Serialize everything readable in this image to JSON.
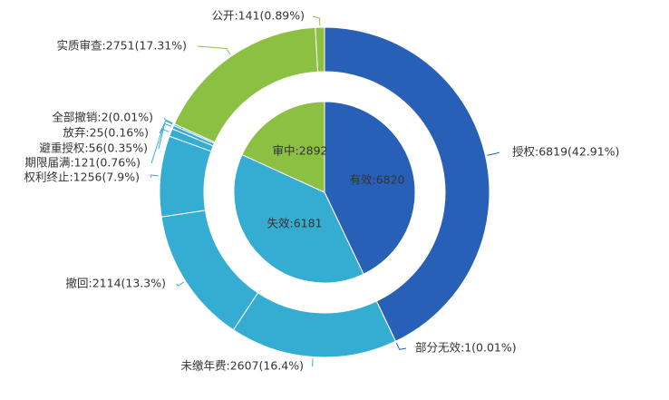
{
  "chart_data": {
    "type": "pie",
    "inner_ring": {
      "slices": [
        {
          "name": "有效",
          "value": 6820,
          "color": "#2860b8",
          "label": "有效:6820"
        },
        {
          "name": "失效",
          "value": 6181,
          "color": "#35acd1",
          "label": "失效:6181"
        },
        {
          "name": "审中",
          "value": 2892,
          "color": "#8bc043",
          "label": "审中:2892"
        }
      ]
    },
    "outer_ring": {
      "slices": [
        {
          "name": "授权",
          "value": 6819,
          "color": "#2860b8",
          "label": "授权:6819(42.91%)"
        },
        {
          "name": "部分无效",
          "value": 1,
          "color": "#2860b8",
          "label": "部分无效:1(0.01%)"
        },
        {
          "name": "未缴年费",
          "value": 2607,
          "color": "#35acd1",
          "label": "未缴年费:2607(16.4%)"
        },
        {
          "name": "撤回",
          "value": 2114,
          "color": "#35acd1",
          "label": "撤回:2114(13.3%)"
        },
        {
          "name": "权利终止",
          "value": 1256,
          "color": "#35acd1",
          "label": "权利终止:1256(7.9%)"
        },
        {
          "name": "期限届满",
          "value": 121,
          "color": "#35acd1",
          "label": "期限届满:121(0.76%)"
        },
        {
          "name": "避重授权",
          "value": 56,
          "color": "#35acd1",
          "label": "避重授权:56(0.35%)"
        },
        {
          "name": "放弃",
          "value": 25,
          "color": "#35acd1",
          "label": "放弃:25(0.16%)"
        },
        {
          "name": "全部撤销",
          "value": 2,
          "color": "#35acd1",
          "label": "全部撤销:2(0.01%)"
        },
        {
          "name": "实质审查",
          "value": 2751,
          "color": "#8bc043",
          "label": "实质审查:2751(17.31%)"
        },
        {
          "name": "公开",
          "value": 141,
          "color": "#8bc043",
          "label": "公开:141(0.89%)"
        }
      ]
    }
  }
}
